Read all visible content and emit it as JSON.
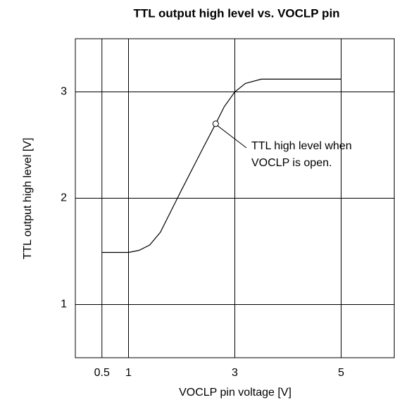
{
  "chart_data": {
    "type": "line",
    "title": "TTL output high level vs. VOCLP pin",
    "xlabel": "VOCLP pin voltage [V]",
    "ylabel": "TTL output high level [V]",
    "x": [
      0.5,
      1,
      1.2,
      1.4,
      1.6,
      2.0,
      2.4,
      2.64,
      2.8,
      3.0,
      3.2,
      3.5,
      4,
      5
    ],
    "series": [
      {
        "color": "#000000",
        "values": [
          1.49,
          1.49,
          1.51,
          1.56,
          1.68,
          2.08,
          2.47,
          2.7,
          2.86,
          3.0,
          3.08,
          3.12,
          3.12,
          3.12
        ]
      }
    ],
    "marker_index": 7,
    "annotation": [
      "TTL high level when",
      "VOCLP is open."
    ],
    "xlim": [
      0,
      6
    ],
    "ylim": [
      0.5,
      3.5
    ],
    "xticks": [
      0.5,
      1,
      3,
      5
    ],
    "yticks": [
      1,
      2,
      3
    ],
    "grid": true
  }
}
